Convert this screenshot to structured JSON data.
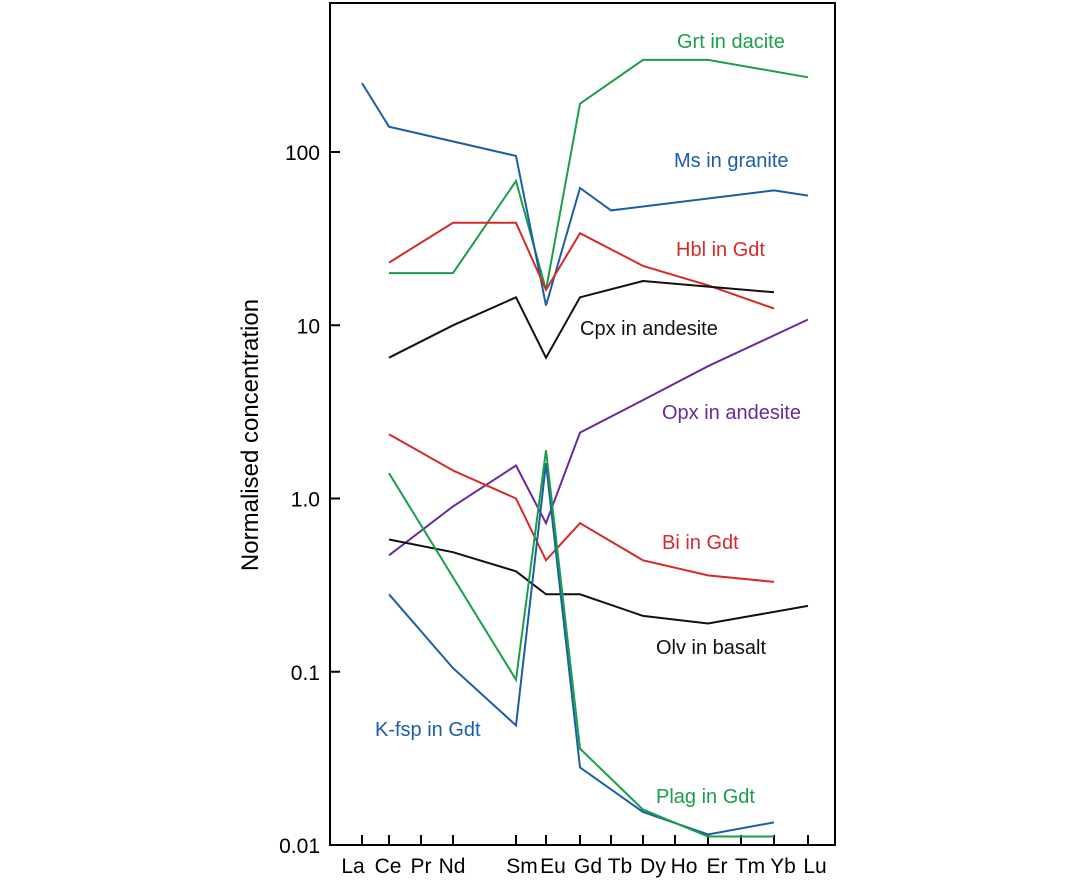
{
  "chart_data": {
    "type": "line",
    "title": "",
    "xlabel": "",
    "ylabel": "Normalised concentration",
    "yscale": "log",
    "ylim": [
      0.01,
      1000
    ],
    "grid": false,
    "legend": "none (series labelled directly on chart)",
    "x_ticks": [
      "La",
      "Ce",
      "Pr",
      "Nd",
      "Sm",
      "Eu",
      "Gd",
      "Tb",
      "Dy",
      "Ho",
      "Er",
      "Tm",
      "Yb",
      "Lu"
    ],
    "y_ticks": [
      {
        "value": 0.01,
        "label": "0.01"
      },
      {
        "value": 0.1,
        "label": "0.1"
      },
      {
        "value": 1,
        "label": "1.0"
      },
      {
        "value": 10,
        "label": "10"
      },
      {
        "value": 100,
        "label": "100"
      }
    ],
    "series": [
      {
        "name": "Grt in dacite",
        "color": "#1a9e4a",
        "x": [
          "Ce",
          "Nd",
          "Sm",
          "Eu",
          "Gd",
          "Dy",
          "Er",
          "Lu"
        ],
        "y": [
          20,
          20,
          68,
          16,
          190,
          340,
          340,
          270
        ]
      },
      {
        "name": "Ms in granite",
        "color": "#1a5ea6",
        "x": [
          "La",
          "Ce",
          "Sm",
          "Eu",
          "Gd",
          "Tb",
          "Yb",
          "Lu"
        ],
        "y": [
          250,
          140,
          95,
          13,
          62,
          46,
          60,
          56
        ]
      },
      {
        "name": "Hbl in Gdt",
        "color": "#d42a2a",
        "x": [
          "Ce",
          "Nd",
          "Sm",
          "Eu",
          "Gd",
          "Dy",
          "Er",
          "Yb"
        ],
        "y": [
          23,
          39,
          39,
          16,
          34,
          22,
          17,
          12.5
        ]
      },
      {
        "name": "Cpx in andesite",
        "color": "#111111",
        "x": [
          "Ce",
          "Nd",
          "Sm",
          "Eu",
          "Gd",
          "Dy",
          "Yb"
        ],
        "y": [
          6.5,
          10,
          14.5,
          6.5,
          14.5,
          18,
          15.5
        ]
      },
      {
        "name": "Opx in andesite",
        "color": "#6a2a9c",
        "x": [
          "Ce",
          "Nd",
          "Sm",
          "Eu",
          "Gd",
          "Dy",
          "Er",
          "Lu"
        ],
        "y": [
          0.47,
          0.9,
          1.55,
          0.72,
          2.4,
          3.7,
          5.8,
          10.8
        ]
      },
      {
        "name": "Bi in Gdt",
        "color": "#d42a2a",
        "x": [
          "Ce",
          "Nd",
          "Sm",
          "Eu",
          "Gd",
          "Dy",
          "Er",
          "Yb"
        ],
        "y": [
          2.35,
          1.45,
          1.0,
          0.44,
          0.72,
          0.44,
          0.36,
          0.33
        ]
      },
      {
        "name": "Olv in basalt",
        "color": "#111111",
        "x": [
          "Ce",
          "Nd",
          "Sm",
          "Eu",
          "Gd",
          "Dy",
          "Er",
          "Lu"
        ],
        "y": [
          0.58,
          0.49,
          0.38,
          0.28,
          0.28,
          0.21,
          0.19,
          0.24
        ]
      },
      {
        "name": "K-fsp in Gdt",
        "color": "#1a5ea6",
        "x": [
          "Ce",
          "Nd",
          "Sm",
          "Eu",
          "Gd",
          "Dy",
          "Er",
          "Yb"
        ],
        "y": [
          0.28,
          0.105,
          0.049,
          1.6,
          0.028,
          0.0155,
          0.0115,
          0.0135
        ]
      },
      {
        "name": "Plag in Gdt",
        "color": "#1a9e4a",
        "x": [
          "Ce",
          "Sm",
          "Eu",
          "Gd",
          "Dy",
          "Er",
          "Yb"
        ],
        "y": [
          1.4,
          0.09,
          1.9,
          0.036,
          0.016,
          0.0112,
          0.0112
        ]
      }
    ]
  }
}
